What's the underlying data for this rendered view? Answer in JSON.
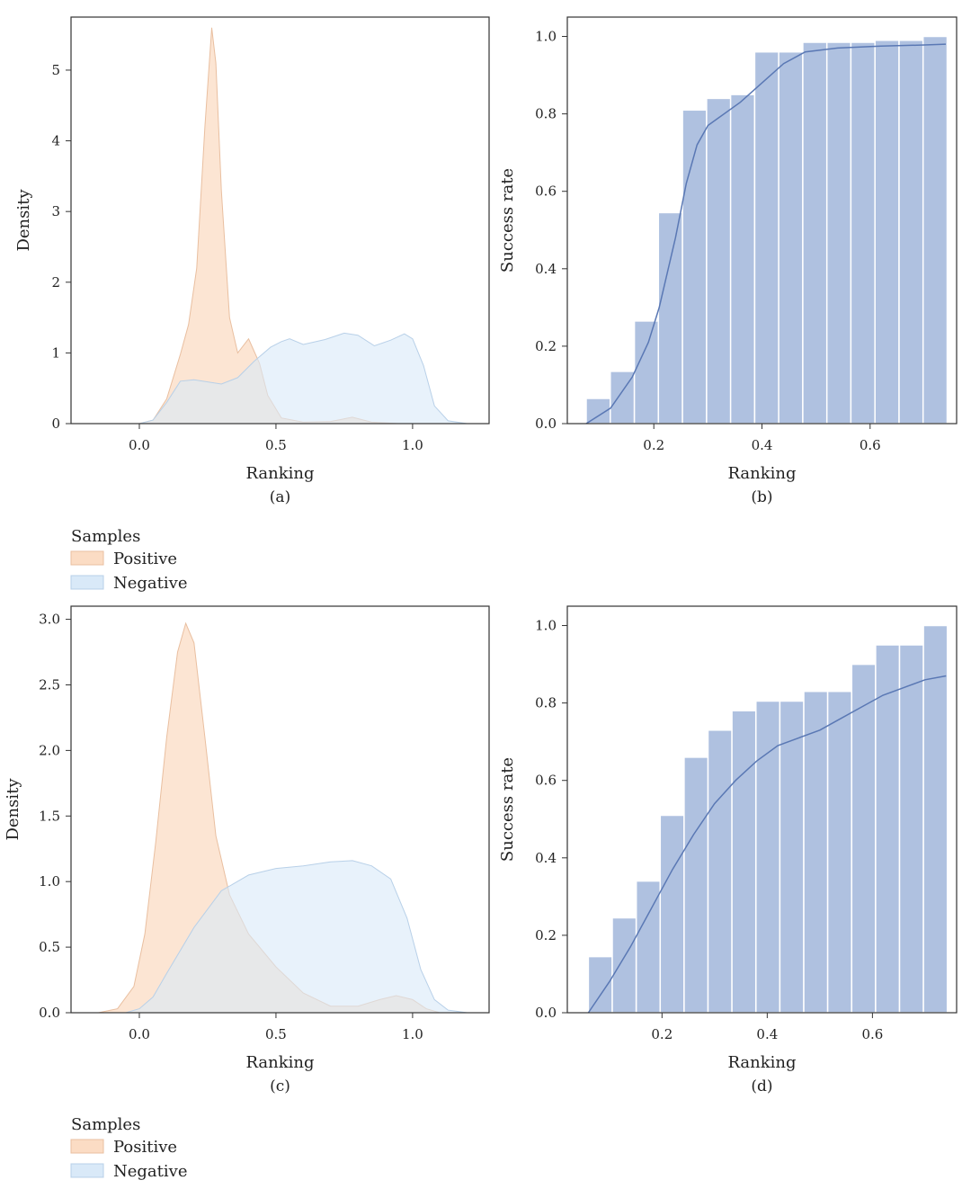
{
  "colors": {
    "positive": "#fbdcc4",
    "positive_edge": "#e9bfa0",
    "negative": "#d9e9f8",
    "negative_edge": "#b8d0e8",
    "bar": "#afc1e0",
    "curve": "#5a78b4",
    "axis": "#333333"
  },
  "chart_data": [
    {
      "id": "a",
      "type": "area",
      "panel_label": "(a)",
      "xlabel": "Ranking",
      "ylabel": "Density",
      "xlim": [
        -0.25,
        1.28
      ],
      "ylim": [
        0,
        5.75
      ],
      "xticks": [
        0,
        0.5,
        1
      ],
      "xtick_labels": [
        "0.0",
        "0.5",
        "1.0"
      ],
      "yticks": [
        0,
        1,
        2,
        3,
        4,
        5
      ],
      "ytick_labels": [
        "0",
        "1",
        "2",
        "3",
        "4",
        "5"
      ],
      "legend": {
        "title": "Samples",
        "entries": [
          {
            "label": "Positive",
            "color_key": "positive"
          },
          {
            "label": "Negative",
            "color_key": "negative"
          }
        ]
      },
      "series": [
        {
          "name": "Positive",
          "color_key": "positive",
          "x": [
            0.0,
            0.05,
            0.1,
            0.15,
            0.18,
            0.21,
            0.24,
            0.265,
            0.28,
            0.3,
            0.33,
            0.36,
            0.4,
            0.44,
            0.47,
            0.52,
            0.6,
            0.7,
            0.78,
            0.85,
            0.95
          ],
          "y": [
            0.0,
            0.05,
            0.35,
            0.98,
            1.4,
            2.2,
            4.2,
            5.6,
            5.1,
            3.3,
            1.5,
            1.0,
            1.2,
            0.85,
            0.4,
            0.08,
            0.02,
            0.03,
            0.09,
            0.02,
            0.0
          ]
        },
        {
          "name": "Negative",
          "color_key": "negative",
          "x": [
            0.0,
            0.05,
            0.1,
            0.15,
            0.2,
            0.3,
            0.36,
            0.42,
            0.48,
            0.52,
            0.55,
            0.6,
            0.68,
            0.75,
            0.8,
            0.86,
            0.92,
            0.97,
            1.0,
            1.04,
            1.08,
            1.13,
            1.2
          ],
          "y": [
            0.0,
            0.05,
            0.3,
            0.6,
            0.62,
            0.56,
            0.65,
            0.88,
            1.08,
            1.16,
            1.2,
            1.12,
            1.19,
            1.28,
            1.25,
            1.1,
            1.18,
            1.27,
            1.2,
            0.82,
            0.25,
            0.04,
            0.0
          ]
        }
      ]
    },
    {
      "id": "b",
      "type": "bar",
      "panel_label": "(b)",
      "xlabel": "Ranking",
      "ylabel": "Success rate",
      "xlim": [
        0.04,
        0.76
      ],
      "ylim": [
        0,
        1.05
      ],
      "xticks": [
        0.2,
        0.4,
        0.6
      ],
      "xtick_labels": [
        "0.2",
        "0.4",
        "0.6"
      ],
      "yticks": [
        0,
        0.2,
        0.4,
        0.6,
        0.8,
        1.0
      ],
      "ytick_labels": [
        "0.0",
        "0.2",
        "0.4",
        "0.6",
        "0.8",
        "1.0"
      ],
      "bin_edges": [
        0.075,
        0.1195,
        0.164,
        0.2085,
        0.253,
        0.2975,
        0.342,
        0.3865,
        0.431,
        0.4755,
        0.52,
        0.5645,
        0.609,
        0.6535,
        0.698,
        0.7425
      ],
      "values": [
        0.065,
        0.135,
        0.265,
        0.545,
        0.81,
        0.84,
        0.85,
        0.96,
        0.96,
        0.985,
        0.985,
        0.985,
        0.99,
        0.99,
        1.0
      ],
      "curve": {
        "x": [
          0.075,
          0.12,
          0.16,
          0.19,
          0.21,
          0.24,
          0.26,
          0.28,
          0.3,
          0.32,
          0.36,
          0.4,
          0.44,
          0.48,
          0.54,
          0.62,
          0.7,
          0.74
        ],
        "y": [
          0.0,
          0.04,
          0.12,
          0.21,
          0.3,
          0.48,
          0.62,
          0.72,
          0.77,
          0.79,
          0.83,
          0.88,
          0.93,
          0.96,
          0.97,
          0.975,
          0.978,
          0.98
        ]
      }
    },
    {
      "id": "c",
      "type": "area",
      "panel_label": "(c)",
      "xlabel": "Ranking",
      "ylabel": "Density",
      "xlim": [
        -0.25,
        1.28
      ],
      "ylim": [
        0,
        3.1
      ],
      "xticks": [
        0,
        0.5,
        1
      ],
      "xtick_labels": [
        "0.0",
        "0.5",
        "1.0"
      ],
      "yticks": [
        0,
        0.5,
        1,
        1.5,
        2,
        2.5,
        3
      ],
      "ytick_labels": [
        "0.0",
        "0.5",
        "1.0",
        "1.5",
        "2.0",
        "2.5",
        "3.0"
      ],
      "legend": {
        "title": "Samples",
        "entries": [
          {
            "label": "Positive",
            "color_key": "positive"
          },
          {
            "label": "Negative",
            "color_key": "negative"
          }
        ]
      },
      "series": [
        {
          "name": "Positive",
          "color_key": "positive",
          "x": [
            -0.15,
            -0.08,
            -0.02,
            0.02,
            0.06,
            0.1,
            0.14,
            0.17,
            0.2,
            0.24,
            0.28,
            0.33,
            0.4,
            0.5,
            0.6,
            0.7,
            0.8,
            0.88,
            0.94,
            1.0,
            1.05,
            1.1
          ],
          "y": [
            0.0,
            0.03,
            0.2,
            0.6,
            1.3,
            2.1,
            2.75,
            2.97,
            2.82,
            2.1,
            1.35,
            0.9,
            0.6,
            0.35,
            0.15,
            0.05,
            0.05,
            0.1,
            0.13,
            0.1,
            0.03,
            0.0
          ]
        },
        {
          "name": "Negative",
          "color_key": "negative",
          "x": [
            -0.05,
            0.0,
            0.05,
            0.1,
            0.2,
            0.3,
            0.4,
            0.5,
            0.6,
            0.7,
            0.78,
            0.85,
            0.92,
            0.98,
            1.03,
            1.08,
            1.13,
            1.2
          ],
          "y": [
            0.0,
            0.03,
            0.12,
            0.3,
            0.65,
            0.93,
            1.05,
            1.1,
            1.12,
            1.15,
            1.16,
            1.12,
            1.02,
            0.72,
            0.33,
            0.1,
            0.02,
            0.0
          ]
        }
      ]
    },
    {
      "id": "d",
      "type": "bar",
      "panel_label": "(d)",
      "xlabel": "Ranking",
      "ylabel": "Success rate",
      "xlim": [
        0.02,
        0.76
      ],
      "ylim": [
        0,
        1.05
      ],
      "xticks": [
        0.2,
        0.4,
        0.6
      ],
      "xtick_labels": [
        "0.2",
        "0.4",
        "0.6"
      ],
      "yticks": [
        0,
        0.2,
        0.4,
        0.6,
        0.8,
        1.0
      ],
      "ytick_labels": [
        "0.0",
        "0.2",
        "0.4",
        "0.6",
        "0.8",
        "1.0"
      ],
      "bin_edges": [
        0.06,
        0.1055,
        0.151,
        0.1965,
        0.242,
        0.2875,
        0.333,
        0.3785,
        0.424,
        0.4695,
        0.515,
        0.5605,
        0.606,
        0.6515,
        0.697,
        0.7425
      ],
      "values": [
        0.145,
        0.245,
        0.34,
        0.51,
        0.66,
        0.73,
        0.78,
        0.805,
        0.805,
        0.83,
        0.83,
        0.9,
        0.95,
        0.95,
        1.0
      ],
      "curve": {
        "x": [
          0.06,
          0.1,
          0.14,
          0.18,
          0.22,
          0.26,
          0.3,
          0.34,
          0.38,
          0.42,
          0.46,
          0.5,
          0.54,
          0.58,
          0.62,
          0.66,
          0.7,
          0.74
        ],
        "y": [
          0.0,
          0.08,
          0.17,
          0.27,
          0.37,
          0.46,
          0.54,
          0.6,
          0.65,
          0.69,
          0.71,
          0.73,
          0.76,
          0.79,
          0.82,
          0.84,
          0.86,
          0.87
        ]
      }
    }
  ]
}
